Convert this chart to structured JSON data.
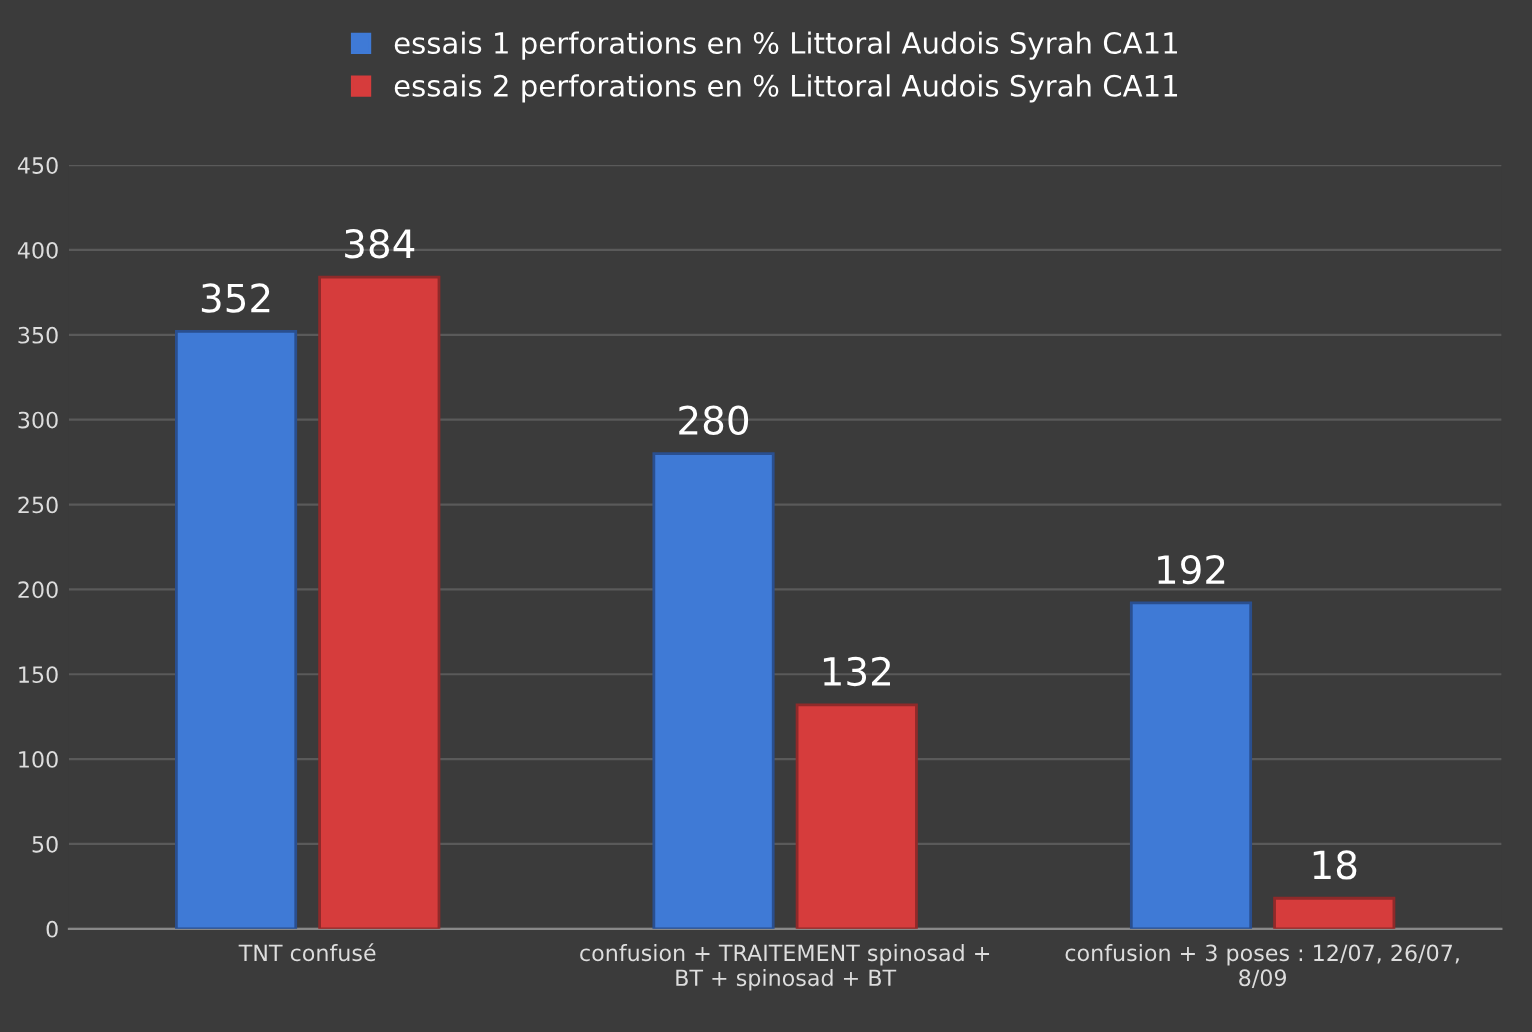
{
  "chart_data": {
    "type": "bar",
    "categories": [
      "TNT confusé",
      "confusion + TRAITEMENT spinosad + BT + spinosad + BT",
      "confusion + 3 poses : 12/07, 26/07, 8/09"
    ],
    "series": [
      {
        "name": "essais 1 perforations en % Littoral Audois Syrah CA11",
        "color": "#3f7ad6",
        "values": [
          352,
          280,
          192
        ]
      },
      {
        "name": "essais 2 perforations en % Littoral Audois Syrah CA11",
        "color": "#d63c3c",
        "values": [
          384,
          132,
          18
        ]
      }
    ],
    "ylim": [
      0,
      450
    ],
    "yticks": [
      0,
      50,
      100,
      150,
      200,
      250,
      300,
      350,
      400,
      450
    ],
    "grid": "y",
    "legend": "top",
    "data_labels": true
  }
}
